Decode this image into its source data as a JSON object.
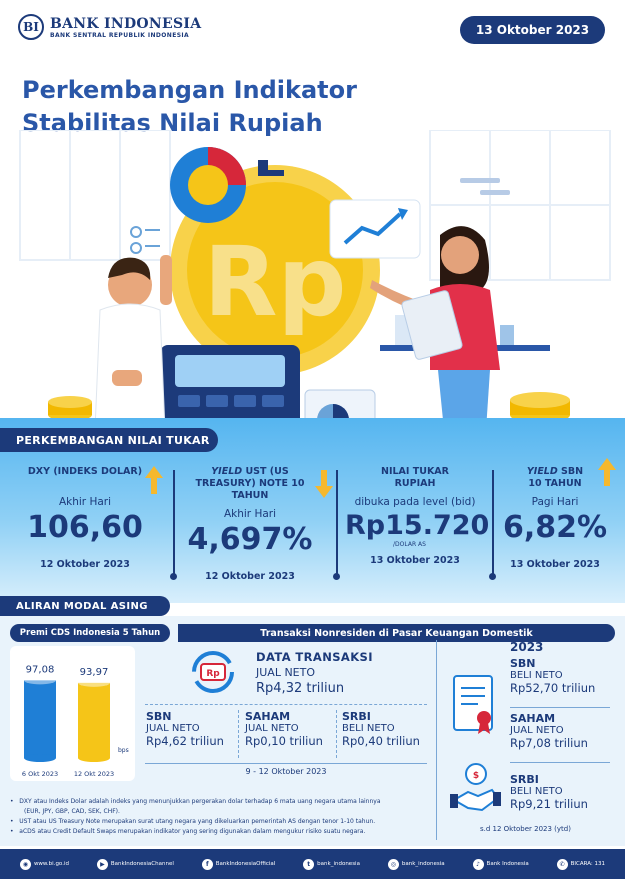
{
  "header": {
    "logo_name": "BANK INDONESIA",
    "logo_sub": "BANK SENTRAL REPUBLIK INDONESIA",
    "logo_mark": "BI",
    "date": "13 Oktober 2023"
  },
  "title": {
    "line1": "Perkembangan Indikator",
    "line2": "Stabilitas Nilai Rupiah"
  },
  "hero": {
    "coin_text": "Rp"
  },
  "exchange": {
    "section_label": "PERKEMBANGAN NILAI TUKAR",
    "indicators": [
      {
        "title": "DXY (INDEKS DOLAR)",
        "subtitle": "Akhir Hari",
        "value": "106,60",
        "unit": "",
        "date": "12 Oktober 2023",
        "direction": "up"
      },
      {
        "title_italic": "YIELD",
        "title": " UST (US TREASURY) NOTE  10 TAHUN",
        "subtitle": "Akhir Hari",
        "value": "4,697%",
        "unit": "",
        "date": "12 Oktober 2023",
        "direction": "down"
      },
      {
        "title": "NILAI TUKAR RUPIAH",
        "subtitle": "dibuka pada level (bid)",
        "value": "Rp15.720",
        "unit": "/DOLAR AS",
        "date": "13 Oktober 2023",
        "direction": "none"
      },
      {
        "title_italic": "YIELD",
        "title": " SBN 10 TAHUN",
        "subtitle": "Pagi Hari",
        "value": "6,82%",
        "unit": "",
        "date": "13 Oktober 2023",
        "direction": "up"
      }
    ]
  },
  "capital": {
    "section_label": "ALIRAN MODAL ASING",
    "cds": {
      "header": "Premi CDS Indonesia 5 Tahun",
      "unit": "bps",
      "bars": [
        {
          "label": "6 Okt 2023",
          "value": 97.08,
          "display": "97,08",
          "color": "#1f7fd6"
        },
        {
          "label": "12 Okt 2023",
          "value": 93.97,
          "display": "93,97",
          "color": "#f5c518"
        }
      ]
    },
    "transactions": {
      "header": "Transaksi Nonresiden di Pasar Keuangan Domestik",
      "total_title": "DATA  TRANSAKSI",
      "total_type": "JUAL NETO",
      "total_value": "Rp4,32 triliun",
      "period": "9 - 12  Oktober 2023",
      "items": [
        {
          "name": "SBN",
          "type": "JUAL NETO",
          "value": "Rp4,62 triliun"
        },
        {
          "name": "SAHAM",
          "type": "JUAL NETO",
          "value": "Rp0,10 triliun"
        },
        {
          "name": "SRBI",
          "type": "BELI NETO",
          "value": "Rp0,40 triliun"
        }
      ]
    },
    "ytd": {
      "year": "2023",
      "items": [
        {
          "name": "SBN",
          "type": "BELI NETO",
          "value": "Rp52,70 triliun"
        },
        {
          "name": "SAHAM",
          "type": "JUAL NETO",
          "value": "Rp7,08 triliun"
        },
        {
          "name": "SRBI",
          "type": "BELI NETO",
          "value": "Rp9,21 triliun"
        }
      ],
      "note": "s.d 12 Oktober 2023 (ytd)"
    }
  },
  "footnotes": [
    "DXY atau Indeks Dolar adalah indeks yang menunjukkan pergerakan dolar terhadap 6 mata uang negara utama lainnya",
    "(EUR, JPY, GBP, CAD, SEK, CHF).",
    "UST atau US Treasury Note merupakan surat utang negara yang dikeluarkan pemerintah AS dengan tenor 1-10 tahun.",
    "aCDS atau Credit Default Swaps merupakan indikator yang sering digunakan dalam mengukur risiko suatu negara."
  ],
  "footer": [
    {
      "icon": "globe-icon",
      "glyph": "◉",
      "label": "www.bi.go.id"
    },
    {
      "icon": "youtube-icon",
      "glyph": "▶",
      "label": "BankIndonesiaChannel"
    },
    {
      "icon": "facebook-icon",
      "glyph": "f",
      "label": "BankIndonesiaOfficial"
    },
    {
      "icon": "twitter-icon",
      "glyph": "t",
      "label": "bank_indonesia"
    },
    {
      "icon": "instagram-icon",
      "glyph": "◎",
      "label": "bank_indonesia"
    },
    {
      "icon": "tiktok-icon",
      "glyph": "♪",
      "label": "Bank Indonesia"
    },
    {
      "icon": "chat-icon",
      "glyph": "✆",
      "label": "BICARA: 131"
    }
  ],
  "colors": {
    "navy": "#1c3a7a",
    "sky": "#55b5f0",
    "gold": "#f5c518",
    "blue": "#1f7fd6",
    "up_arrow": "#f5b82e",
    "down_arrow": "#f5b82e"
  }
}
